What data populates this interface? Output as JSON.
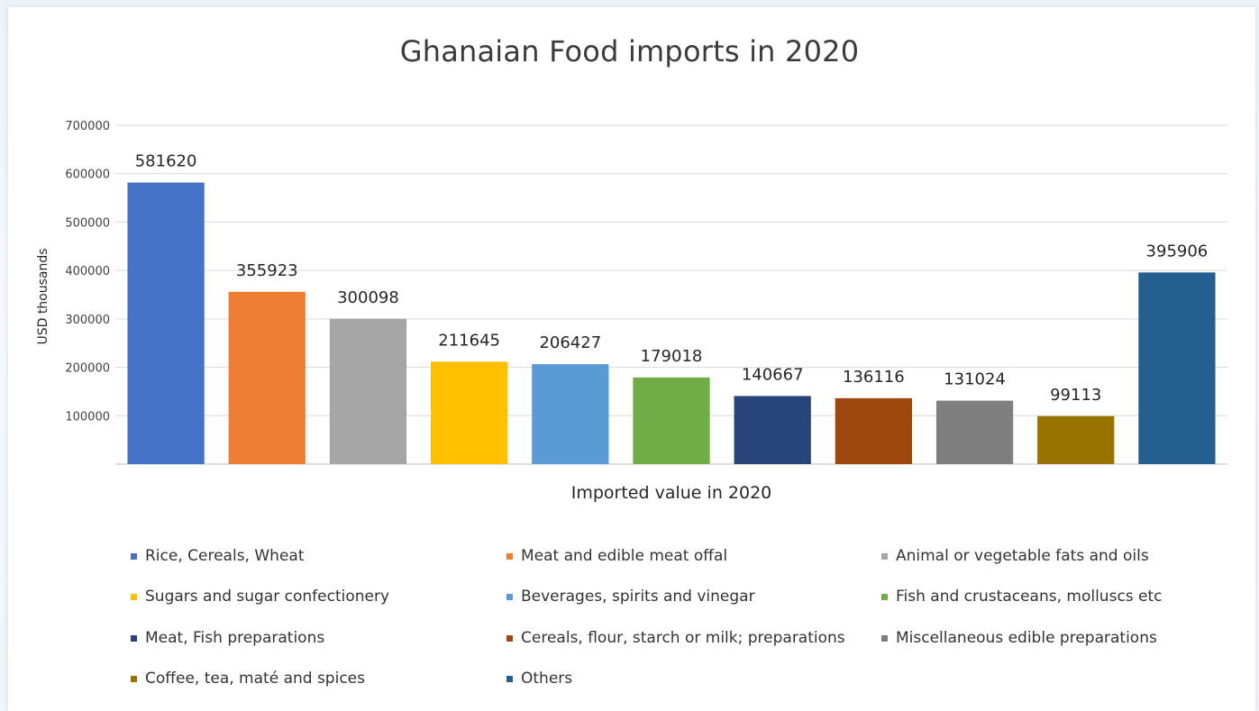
{
  "chart_data": {
    "type": "bar",
    "title": "Ghanaian Food imports in 2020",
    "xlabel": "Imported value in 2020",
    "ylabel": "USD thousands",
    "ylim": [
      0,
      700000
    ],
    "yticks": [
      "100000",
      "200000",
      "300000",
      "400000",
      "500000",
      "600000",
      "700000"
    ],
    "grid": true,
    "legend_position": "bottom",
    "series": [
      {
        "name": "Rice, Cereals, Wheat",
        "value": 581620,
        "label": "581620",
        "color": "#4472C4"
      },
      {
        "name": "Meat and edible meat offal",
        "value": 355923,
        "label": "355923",
        "color": "#ED7D31"
      },
      {
        "name": "Animal or vegetable fats and oils",
        "value": 300098,
        "label": "300098",
        "color": "#A5A5A5"
      },
      {
        "name": "Sugars and sugar confectionery",
        "value": 211645,
        "label": "211645",
        "color": "#FFC000"
      },
      {
        "name": "Beverages, spirits and vinegar",
        "value": 206427,
        "label": "206427",
        "color": "#5B9BD5"
      },
      {
        "name": "Fish and crustaceans, molluscs etc",
        "value": 179018,
        "label": "179018",
        "color": "#70AD47"
      },
      {
        "name": "Meat, Fish preparations",
        "value": 140667,
        "label": "140667",
        "color": "#264478"
      },
      {
        "name": "Cereals, flour, starch or milk; preparations",
        "value": 136116,
        "label": "136116",
        "color": "#9E480E"
      },
      {
        "name": "Miscellaneous edible preparations",
        "value": 131024,
        "label": "131024",
        "color": "#7F7F7F"
      },
      {
        "name": "Coffee, tea, maté and spices",
        "value": 99113,
        "label": "99113",
        "color": "#997300"
      },
      {
        "name": "Others",
        "value": 395906,
        "label": "395906",
        "color": "#255E91"
      }
    ]
  }
}
